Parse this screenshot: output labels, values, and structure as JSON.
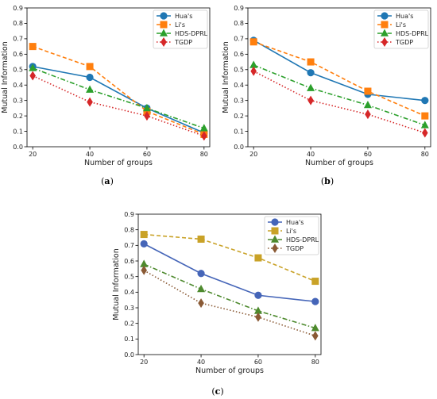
{
  "colors": {
    "hua": "#1f77b4",
    "li": "#ff7f0e",
    "hds": "#2ca02c",
    "tgdp": "#d62728",
    "hua_c": "#4565b8",
    "li_c": "#c9a227",
    "hds_c": "#4e8a2e",
    "tgdp_c": "#8a5a35"
  },
  "chart_data": [
    {
      "panel": "(a)",
      "type": "line",
      "x": [
        20,
        40,
        60,
        80
      ],
      "xlabel": "Number of groups",
      "ylabel": "Mutual Information",
      "xlim": [
        18,
        82
      ],
      "ylim": [
        0,
        0.9
      ],
      "yticks": [
        0.0,
        0.1,
        0.2,
        0.3,
        0.4,
        0.5,
        0.6,
        0.7,
        0.8,
        0.9
      ],
      "xticks": [
        20,
        40,
        60,
        80
      ],
      "legend": "top-right",
      "grid": false,
      "series": [
        {
          "name": "Hua's",
          "values": [
            0.52,
            0.45,
            0.25,
            0.09
          ],
          "style": "solid",
          "marker": "circle",
          "color_key": "hua"
        },
        {
          "name": "Li's",
          "values": [
            0.65,
            0.52,
            0.23,
            0.08
          ],
          "style": "dashed",
          "marker": "square",
          "color_key": "li"
        },
        {
          "name": "HDS-DPRL",
          "values": [
            0.51,
            0.37,
            0.25,
            0.12
          ],
          "style": "dashdot",
          "marker": "triangle",
          "color_key": "hds"
        },
        {
          "name": "TGDP",
          "values": [
            0.46,
            0.29,
            0.2,
            0.07
          ],
          "style": "dotted",
          "marker": "diamond",
          "color_key": "tgdp"
        }
      ]
    },
    {
      "panel": "(b)",
      "type": "line",
      "x": [
        20,
        40,
        60,
        80
      ],
      "xlabel": "Number of groups",
      "ylabel": "Mutual Information",
      "xlim": [
        18,
        82
      ],
      "ylim": [
        0,
        0.9
      ],
      "yticks": [
        0.0,
        0.1,
        0.2,
        0.3,
        0.4,
        0.5,
        0.6,
        0.7,
        0.8,
        0.9
      ],
      "xticks": [
        20,
        40,
        60,
        80
      ],
      "legend": "top-right",
      "grid": false,
      "series": [
        {
          "name": "Hua's",
          "values": [
            0.69,
            0.48,
            0.34,
            0.3
          ],
          "style": "solid",
          "marker": "circle",
          "color_key": "hua"
        },
        {
          "name": "Li's",
          "values": [
            0.68,
            0.55,
            0.36,
            0.2
          ],
          "style": "dashed",
          "marker": "square",
          "color_key": "li"
        },
        {
          "name": "HDS-DPRL",
          "values": [
            0.53,
            0.38,
            0.27,
            0.14
          ],
          "style": "dashdot",
          "marker": "triangle",
          "color_key": "hds"
        },
        {
          "name": "TGDP",
          "values": [
            0.49,
            0.3,
            0.21,
            0.09
          ],
          "style": "dotted",
          "marker": "diamond",
          "color_key": "tgdp"
        }
      ]
    },
    {
      "panel": "(c)",
      "type": "line",
      "x": [
        20,
        40,
        60,
        80
      ],
      "xlabel": "Number of groups",
      "ylabel": "Mutual Information",
      "xlim": [
        18,
        82
      ],
      "ylim": [
        0,
        0.9
      ],
      "yticks": [
        0.0,
        0.1,
        0.2,
        0.3,
        0.4,
        0.5,
        0.6,
        0.7,
        0.8,
        0.9
      ],
      "xticks": [
        20,
        40,
        60,
        80
      ],
      "legend": "top-right",
      "grid": false,
      "series": [
        {
          "name": "Hua's",
          "values": [
            0.71,
            0.52,
            0.38,
            0.34
          ],
          "style": "solid",
          "marker": "circle",
          "color_key": "hua_c"
        },
        {
          "name": "Li's",
          "values": [
            0.77,
            0.74,
            0.62,
            0.47
          ],
          "style": "dashed",
          "marker": "square",
          "color_key": "li_c"
        },
        {
          "name": "HDS-DPRL",
          "values": [
            0.58,
            0.42,
            0.28,
            0.17
          ],
          "style": "dashdot",
          "marker": "triangle",
          "color_key": "hds_c"
        },
        {
          "name": "TGDP",
          "values": [
            0.54,
            0.33,
            0.24,
            0.12
          ],
          "style": "dotted",
          "marker": "diamond",
          "color_key": "tgdp_c"
        }
      ]
    }
  ]
}
